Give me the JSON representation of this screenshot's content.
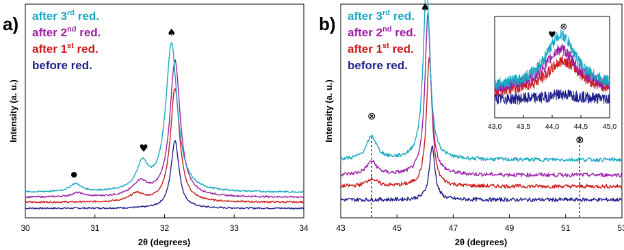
{
  "colors": {
    "before": "#1f1f8c",
    "first": "#cc1a1a",
    "second": "#9b1fa6",
    "third": "#18a8c2"
  },
  "legend_entries": [
    {
      "key": "third",
      "base": "after 3",
      "sup": "rd",
      "tail": " red."
    },
    {
      "key": "second",
      "base": "after 2",
      "sup": "nd",
      "tail": " red."
    },
    {
      "key": "first",
      "base": "after 1",
      "sup": "st",
      "tail": " red."
    },
    {
      "key": "before",
      "base": "before red.",
      "sup": "",
      "tail": ""
    }
  ],
  "chart_data": [
    {
      "type": "line",
      "panel": "a)",
      "xlabel": "2θ (degrees)",
      "ylabel": "Intensity (a. u.)",
      "xlim": [
        30,
        34
      ],
      "xticks": [
        "30",
        "31",
        "32",
        "33",
        "34"
      ],
      "markers": [
        {
          "symbol": "●",
          "x": 30.7
        },
        {
          "symbol": "♥",
          "x": 31.7
        },
        {
          "symbol": "♠",
          "x": 32.1
        }
      ],
      "series": [
        {
          "key": "before",
          "name": "before red.",
          "baseline": 0.02,
          "peaks": [
            {
              "center": 32.15,
              "height": 0.34,
              "width": 0.07
            }
          ]
        },
        {
          "key": "first",
          "name": "after 1st red.",
          "baseline": 0.05,
          "peaks": [
            {
              "center": 32.15,
              "height": 0.57,
              "width": 0.08
            },
            {
              "center": 31.6,
              "height": 0.04,
              "width": 0.12
            }
          ]
        },
        {
          "key": "second",
          "name": "after 2nd red.",
          "baseline": 0.075,
          "peaks": [
            {
              "center": 32.15,
              "height": 0.68,
              "width": 0.09
            },
            {
              "center": 31.65,
              "height": 0.07,
              "width": 0.13
            },
            {
              "center": 30.75,
              "height": 0.02,
              "width": 0.1
            }
          ]
        },
        {
          "key": "third",
          "name": "after 3rd red.",
          "baseline": 0.1,
          "peaks": [
            {
              "center": 32.1,
              "height": 0.74,
              "width": 0.1
            },
            {
              "center": 31.68,
              "height": 0.13,
              "width": 0.1
            },
            {
              "center": 30.72,
              "height": 0.04,
              "width": 0.1
            }
          ]
        }
      ]
    },
    {
      "type": "line",
      "panel": "b)",
      "xlabel": "2θ (degrees)",
      "ylabel": "Intensity (a. u.)",
      "xlim": [
        43,
        53
      ],
      "xticks": [
        "43",
        "45",
        "47",
        "49",
        "51",
        "53"
      ],
      "markers": [
        {
          "symbol": "⊗",
          "x": 44.1
        },
        {
          "symbol": "♠",
          "x": 46.0
        },
        {
          "symbol": "⊗",
          "x": 51.5
        }
      ],
      "reference_lines_x": [
        44.1,
        51.5
      ],
      "series": [
        {
          "key": "before",
          "name": "before red.",
          "baseline": 0.03,
          "peaks": [
            {
              "center": 46.25,
              "height": 0.28,
              "width": 0.12
            }
          ]
        },
        {
          "key": "first",
          "name": "after 1st red.",
          "baseline": 0.1,
          "peaks": [
            {
              "center": 46.15,
              "height": 0.68,
              "width": 0.12
            },
            {
              "center": 44.1,
              "height": 0.04,
              "width": 0.22
            }
          ]
        },
        {
          "key": "second",
          "name": "after 2nd red.",
          "baseline": 0.16,
          "peaks": [
            {
              "center": 46.1,
              "height": 0.84,
              "width": 0.13
            },
            {
              "center": 44.1,
              "height": 0.07,
              "width": 0.22
            }
          ]
        },
        {
          "key": "third",
          "name": "after 3rd red.",
          "baseline": 0.24,
          "peaks": [
            {
              "center": 46.05,
              "height": 0.93,
              "width": 0.14
            },
            {
              "center": 44.1,
              "height": 0.12,
              "width": 0.22
            }
          ]
        }
      ]
    },
    {
      "type": "line",
      "panel": "b) inset",
      "xlim": [
        43.0,
        45.0
      ],
      "xticks": [
        "43,0",
        "43,5",
        "44,0",
        "44,5",
        "45,0"
      ],
      "markers": [
        {
          "symbol": "♥",
          "x": 44.0
        },
        {
          "symbol": "⊗",
          "x": 44.2
        }
      ],
      "series": [
        {
          "key": "before",
          "name": "before red.",
          "baseline": 0.18,
          "peaks": [
            {
              "center": 44.2,
              "height": 0.05,
              "width": 0.3
            }
          ]
        },
        {
          "key": "first",
          "name": "after 1st red.",
          "baseline": 0.25,
          "peaks": [
            {
              "center": 44.2,
              "height": 0.33,
              "width": 0.35
            }
          ]
        },
        {
          "key": "second",
          "name": "after 2nd red.",
          "baseline": 0.28,
          "peaks": [
            {
              "center": 44.15,
              "height": 0.42,
              "width": 0.33
            }
          ]
        },
        {
          "key": "third",
          "name": "after 3rd red.",
          "baseline": 0.3,
          "peaks": [
            {
              "center": 44.15,
              "height": 0.55,
              "width": 0.32
            }
          ]
        }
      ]
    }
  ]
}
